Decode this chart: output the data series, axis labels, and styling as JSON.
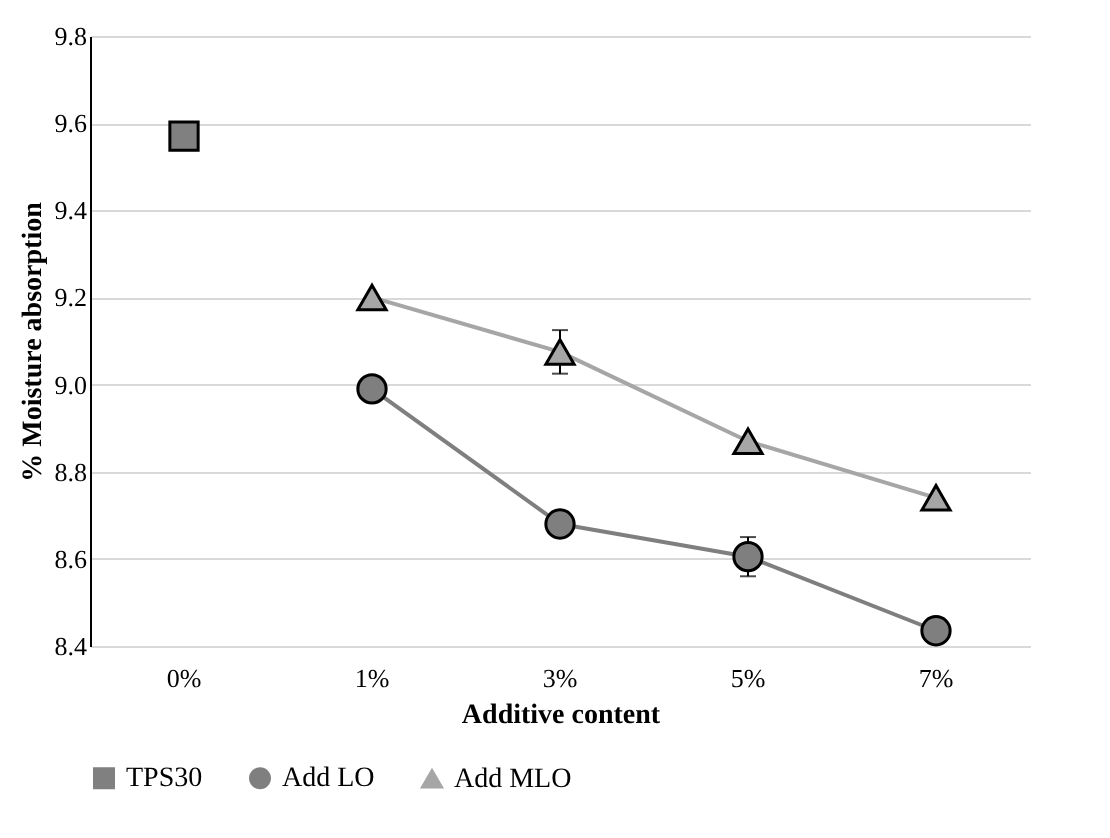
{
  "chart_data": {
    "type": "line",
    "xlabel": "Additive content",
    "ylabel": "% Moisture absorption",
    "categories": [
      "0%",
      "1%",
      "3%",
      "5%",
      "7%"
    ],
    "series": [
      {
        "name": "TPS30",
        "color": "#808080",
        "marker": "square",
        "values": [
          9.57,
          null,
          null,
          null,
          null
        ]
      },
      {
        "name": "Add LO",
        "color": "#7f7f7f",
        "marker": "circle",
        "values": [
          null,
          8.99,
          8.68,
          8.605,
          8.435
        ],
        "errors": [
          null,
          null,
          null,
          0.045,
          null
        ]
      },
      {
        "name": "Add MLO",
        "color": "#a6a6a6",
        "marker": "triangle",
        "values": [
          null,
          9.2,
          9.075,
          8.87,
          8.74
        ],
        "errors": [
          null,
          null,
          0.05,
          null,
          null
        ]
      }
    ],
    "ylim": [
      8.4,
      9.8
    ],
    "yticks": [
      {
        "value": 8.4,
        "label": "8.4"
      },
      {
        "value": 8.6,
        "label": "8.6"
      },
      {
        "value": 8.8,
        "label": "8.8"
      },
      {
        "value": 9.0,
        "label": "9.0"
      },
      {
        "value": 9.2,
        "label": "9.2"
      },
      {
        "value": 9.4,
        "label": "9.4"
      },
      {
        "value": 9.6,
        "label": "9.6"
      },
      {
        "value": 9.8,
        "label": "9.8"
      }
    ],
    "grid": "y",
    "legend": "bottom",
    "line_style": "solid"
  }
}
